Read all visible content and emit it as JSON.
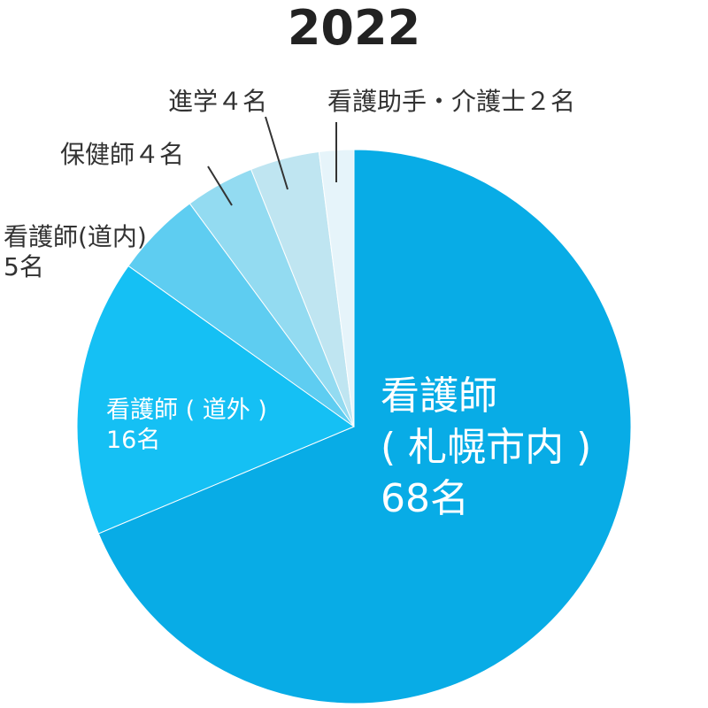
{
  "chart_data": {
    "type": "pie",
    "title": "2022",
    "start_angle": "12 o'clock",
    "direction": "clockwise",
    "slices": [
      {
        "label_lines": [
          "看護師",
          "( 札幌市内 )",
          "68名"
        ],
        "value": 68,
        "color": "#08ace6"
      },
      {
        "label_lines": [
          "看護師 ( 道外 )",
          "16名"
        ],
        "value": 16,
        "color": "#15c0f4"
      },
      {
        "label_lines": [
          "看護師(道内)",
          "5名"
        ],
        "value": 5,
        "color": "#5ecdf1"
      },
      {
        "label_lines": [
          "保健師４名"
        ],
        "value": 4,
        "color": "#93dbf1"
      },
      {
        "label_lines": [
          "進学４名"
        ],
        "value": 4,
        "color": "#bfe5f1"
      },
      {
        "label_lines": [
          "看護助手・介護士２名"
        ],
        "value": 2,
        "color": "#e6f4fa"
      }
    ]
  }
}
